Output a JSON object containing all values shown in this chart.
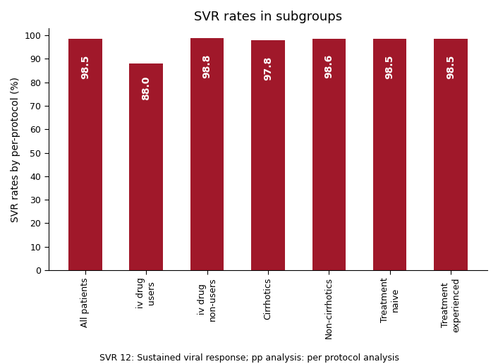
{
  "title": "SVR rates in subgroups",
  "ylabel": "SVR rates by per-protocol (%)",
  "caption": "SVR 12: Sustained viral response; pp analysis: per protocol analysis",
  "categories": [
    "All patients",
    "iv drug\nusers",
    "iv drug\nnon-users",
    "Cirrhotics",
    "Non-cirrhotics",
    "Treatment\nnaive",
    "Treatment\nexperienced"
  ],
  "values": [
    98.5,
    88.0,
    98.8,
    97.8,
    98.6,
    98.5,
    98.5
  ],
  "bar_color": "#A0182A",
  "label_color": "#FFFFFF",
  "ylim": [
    0,
    103
  ],
  "yticks": [
    0,
    10,
    20,
    30,
    40,
    50,
    60,
    70,
    80,
    90,
    100
  ],
  "bar_width": 0.55,
  "label_fontsize": 10,
  "title_fontsize": 13,
  "ylabel_fontsize": 10,
  "xtick_fontsize": 9,
  "ytick_fontsize": 9,
  "caption_fontsize": 9,
  "background_color": "#FFFFFF"
}
